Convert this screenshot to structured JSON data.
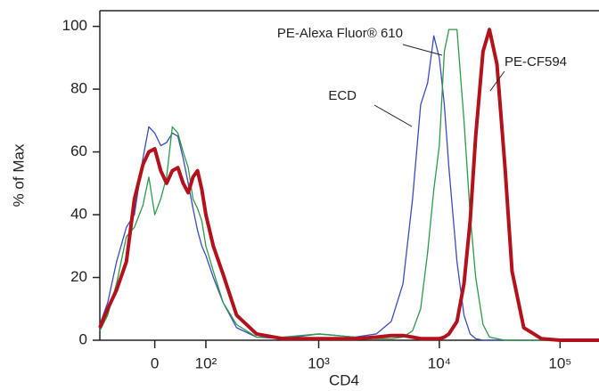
{
  "chart_data": {
    "type": "line",
    "xlabel": "CD4",
    "ylabel": "% of Max",
    "xscale": "biexponential",
    "xlim": [
      -110,
      210000
    ],
    "ylim": [
      0,
      105
    ],
    "xticks": [
      0,
      {
        "value": 100,
        "label": "10²"
      },
      {
        "value": 1000,
        "label": "10³"
      },
      {
        "value": 10000,
        "label": "10⁴"
      },
      {
        "value": 100000,
        "label": "10⁵"
      }
    ],
    "yticks": [
      0,
      20,
      40,
      60,
      80,
      100
    ],
    "x": [
      -110,
      -90,
      -70,
      -50,
      -35,
      -20,
      -10,
      0,
      10,
      20,
      30,
      40,
      50,
      60,
      70,
      80,
      90,
      100,
      120,
      150,
      200,
      300,
      500,
      1000,
      2000,
      3000,
      4000,
      5000,
      6000,
      7000,
      8000,
      9000,
      10000,
      11000,
      12000,
      14000,
      16000,
      18000,
      20000,
      23000,
      26000,
      30000,
      35000,
      40000,
      50000,
      70000,
      100000,
      210000
    ],
    "series": [
      {
        "name": "ECD",
        "color": "#3a4cc0",
        "width": 1.3,
        "values": [
          5,
          12,
          25,
          36,
          40,
          58,
          68,
          66,
          62,
          63,
          66,
          65,
          58,
          50,
          42,
          35,
          30,
          27,
          20,
          12,
          4,
          1,
          0.5,
          2,
          1,
          2,
          6,
          18,
          45,
          75,
          82,
          97,
          90,
          75,
          55,
          25,
          8,
          2,
          0.5,
          0,
          0,
          0,
          0,
          0,
          0,
          0,
          0,
          0
        ]
      },
      {
        "name": "PE-Alexa Fluor® 610",
        "color": "#2e9a48",
        "width": 1.3,
        "values": [
          3,
          8,
          18,
          33,
          36,
          43,
          52,
          40,
          45,
          52,
          68,
          66,
          60,
          55,
          45,
          42,
          38,
          30,
          22,
          12,
          5,
          1,
          1,
          2,
          1,
          0.5,
          0.5,
          1,
          3,
          10,
          28,
          48,
          62,
          92,
          99,
          99,
          70,
          40,
          20,
          5,
          1,
          0.5,
          0,
          0,
          0,
          0,
          0,
          0
        ]
      },
      {
        "name": "PE-CF594",
        "color": "#b3121c",
        "width": 4,
        "values": [
          4,
          10,
          16,
          25,
          45,
          56,
          60,
          61,
          54,
          50,
          54,
          55,
          50,
          47,
          52,
          54,
          48,
          40,
          30,
          21,
          8,
          2,
          0.5,
          0.5,
          0.5,
          1,
          1.5,
          1.5,
          1,
          0.5,
          0.5,
          0.5,
          0.5,
          1,
          2,
          6,
          18,
          38,
          65,
          92,
          99,
          88,
          55,
          22,
          4,
          0.5,
          0,
          0
        ]
      }
    ]
  }
}
